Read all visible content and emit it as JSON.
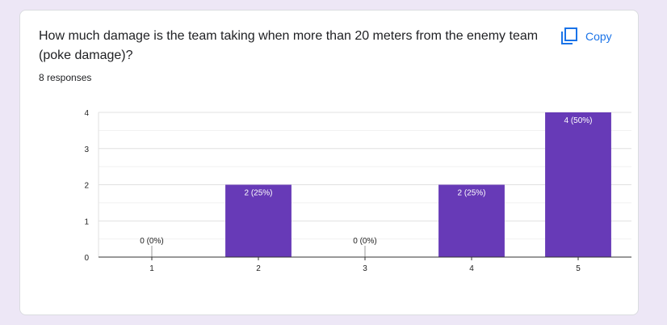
{
  "card": {
    "question": "How much damage is the team taking when more than 20 meters from the enemy team (poke damage)?",
    "responses": "8 responses",
    "copy_label": "Copy"
  },
  "colors": {
    "bar": "#673ab7",
    "accent": "#1a73e8",
    "page_background": "#ede7f6"
  },
  "chart_data": {
    "type": "bar",
    "title": "",
    "xlabel": "",
    "ylabel": "",
    "categories": [
      "1",
      "2",
      "3",
      "4",
      "5"
    ],
    "values": [
      0,
      2,
      0,
      2,
      4
    ],
    "data_labels": [
      "0 (0%)",
      "2 (25%)",
      "0 (0%)",
      "2 (25%)",
      "4 (50%)"
    ],
    "ylim": [
      0,
      4
    ],
    "yticks": [
      0,
      1,
      2,
      3,
      4
    ],
    "grid": true
  }
}
